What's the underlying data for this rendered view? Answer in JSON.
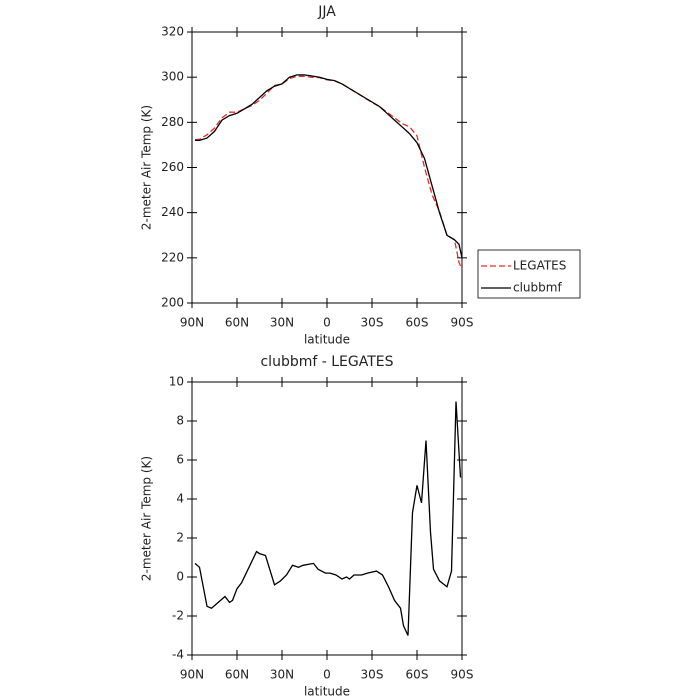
{
  "chart_data": [
    {
      "type": "line",
      "title": "JJA",
      "x_label": "latitude",
      "y_label": "2-meter Air Temp (K)",
      "x": [
        88,
        85,
        80,
        75,
        70,
        65,
        60,
        55,
        50,
        45,
        40,
        35,
        30,
        25,
        20,
        15,
        10,
        5,
        0,
        -5,
        -10,
        -15,
        -20,
        -25,
        -30,
        -35,
        -40,
        -45,
        -50,
        -55,
        -60,
        -65,
        -70,
        -75,
        -80,
        -85,
        -88,
        -90
      ],
      "series": [
        {
          "name": "LEGATES",
          "color": "#e0302a",
          "dash": true,
          "values": [
            272.3,
            272.5,
            274.5,
            277.5,
            282,
            284.5,
            284.5,
            286,
            287.5,
            289.7,
            293,
            296.3,
            297,
            299.4,
            300.4,
            300.4,
            299.9,
            299.8,
            298.8,
            298.4,
            297,
            295,
            293,
            290.8,
            288.8,
            287,
            284.5,
            282,
            279.5,
            278,
            274,
            260,
            248,
            240.5,
            230,
            228,
            218,
            215
          ]
        },
        {
          "name": "clubbmf",
          "color": "#000000",
          "dash": false,
          "values": [
            272,
            272,
            273,
            276,
            281,
            283,
            284,
            286,
            288,
            291,
            294,
            296,
            297,
            300,
            301,
            301,
            300.5,
            300,
            299,
            298.5,
            297,
            295,
            293,
            291,
            289,
            287,
            284,
            281,
            278,
            275,
            271,
            264,
            252,
            240,
            230,
            228,
            226,
            220
          ]
        }
      ],
      "xlim": [
        90,
        -90
      ],
      "xticks": [
        {
          "value": 90,
          "label": "90N"
        },
        {
          "value": 60,
          "label": "60N"
        },
        {
          "value": 30,
          "label": "30N"
        },
        0,
        {
          "value": -30,
          "label": "30S"
        },
        {
          "value": -60,
          "label": "60S"
        },
        {
          "value": -90,
          "label": "90S"
        }
      ],
      "ylim": [
        200,
        320
      ],
      "yticks": [
        200,
        220,
        240,
        260,
        280,
        300,
        320
      ],
      "legend": "right"
    },
    {
      "type": "line",
      "title": "clubbmf - LEGATES",
      "x_label": "latitude",
      "y_label": "2-meter Air Temp (K)",
      "x": [
        88,
        85,
        80,
        77,
        68,
        65,
        63,
        60,
        57,
        52,
        47,
        45,
        41,
        35,
        31,
        27,
        23,
        19,
        16,
        9,
        6,
        1,
        -2,
        -6,
        -10,
        -13,
        -15,
        -18,
        -23,
        -27,
        -33,
        -37,
        -41,
        -45,
        -49,
        -51,
        -54,
        -57,
        -60,
        -63,
        -66,
        -69,
        -71,
        -75,
        -80,
        -83,
        -86,
        -89
      ],
      "series": [
        {
          "name": "clubbmf - LEGATES",
          "color": "#000000",
          "dash": false,
          "values": [
            0.7,
            0.5,
            -1.5,
            -1.6,
            -1.0,
            -1.3,
            -1.2,
            -0.6,
            -0.3,
            0.5,
            1.3,
            1.2,
            1.1,
            -0.4,
            -0.2,
            0.1,
            0.6,
            0.5,
            0.6,
            0.7,
            0.4,
            0.2,
            0.2,
            0.1,
            -0.1,
            0.0,
            -0.1,
            0.1,
            0.1,
            0.2,
            0.3,
            0.1,
            -0.5,
            -1.2,
            -1.6,
            -2.5,
            -3.0,
            3.3,
            4.7,
            3.8,
            7.0,
            2.3,
            0.4,
            -0.2,
            -0.5,
            0.3,
            9.0,
            5.1
          ]
        }
      ],
      "xlim": [
        90,
        -90
      ],
      "xticks": [
        {
          "value": 90,
          "label": "90N"
        },
        {
          "value": 60,
          "label": "60N"
        },
        {
          "value": 30,
          "label": "30N"
        },
        0,
        {
          "value": -30,
          "label": "30S"
        },
        {
          "value": -60,
          "label": "60S"
        },
        {
          "value": -90,
          "label": "90S"
        }
      ],
      "ylim": [
        -4,
        10
      ],
      "yticks": [
        -4,
        -2,
        0,
        2,
        4,
        6,
        8,
        10
      ]
    }
  ]
}
